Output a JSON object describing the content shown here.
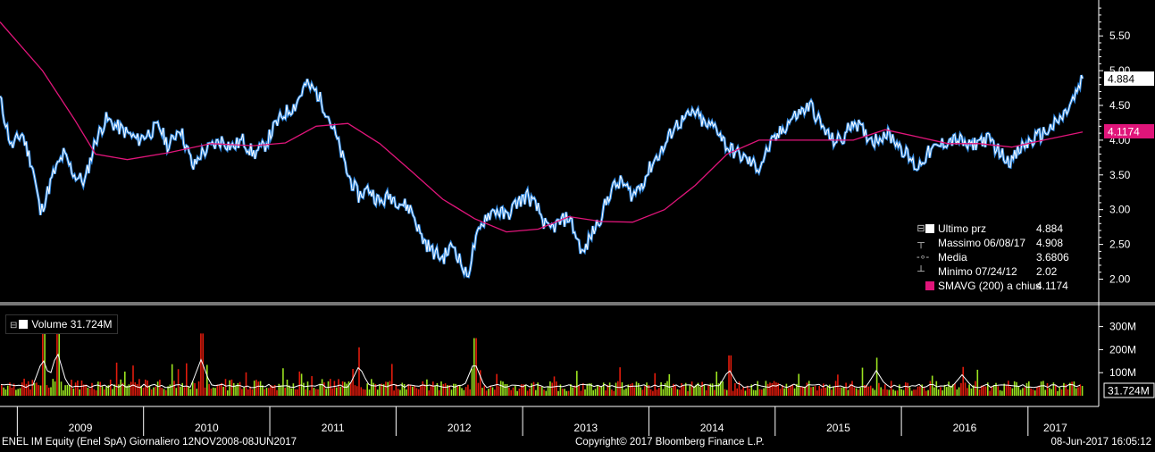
{
  "footer": {
    "security": "ENEL IM Equity (Enel SpA)  Giornaliero 12NOV2008-08JUN2017",
    "copyright": "Copyright© 2017 Bloomberg Finance L.P.",
    "timestamp": "08-Jun-2017 16:05:12"
  },
  "legend": {
    "last": {
      "name": "Ultimo prz",
      "value": "4.884"
    },
    "high": {
      "name": "Massimo 06/08/17",
      "value": "4.908"
    },
    "mean": {
      "name": "Media",
      "value": "3.6806"
    },
    "low": {
      "name": "Minimo 07/24/12",
      "value": "2.02"
    },
    "sma": {
      "name": "SMAVG (200) a chius",
      "value": "4.1174"
    }
  },
  "volume_legend": {
    "name": "Volume",
    "value": "31.724M"
  },
  "price_tags": {
    "last": "4.884",
    "sma": "4.1174"
  },
  "volume_tag": "31.724M",
  "colors": {
    "background": "#000000",
    "price_line": "#ffffff",
    "price_shadow": "#2e86de",
    "sma_line": "#e0157a",
    "volume_up": "#9be31f",
    "volume_down": "#e11b0c",
    "grid": "#555555"
  },
  "chart_data": [
    {
      "type": "line",
      "panel": "price",
      "y_ticks": [
        "2.00",
        "2.50",
        "3.00",
        "3.50",
        "4.00",
        "4.50",
        "5.00",
        "5.50"
      ],
      "ylim": [
        1.8,
        6.0
      ],
      "x_labels": [
        "2009",
        "2010",
        "2011",
        "2012",
        "2013",
        "2014",
        "2015",
        "2016",
        "2017"
      ],
      "x_range": [
        "2008-11-12",
        "2017-06-08"
      ],
      "series": [
        {
          "name": "Ultimo prz",
          "x": [
            "2008-11-12",
            "2008-12-15",
            "2009-01-15",
            "2009-02-15",
            "2009-03-09",
            "2009-04-15",
            "2009-05-15",
            "2009-06-15",
            "2009-07-15",
            "2009-08-15",
            "2009-09-15",
            "2009-10-15",
            "2009-11-15",
            "2009-12-15",
            "2010-01-15",
            "2010-02-15",
            "2010-03-15",
            "2010-04-15",
            "2010-05-25",
            "2010-06-15",
            "2010-07-15",
            "2010-08-15",
            "2010-09-15",
            "2010-10-15",
            "2010-11-15",
            "2010-12-15",
            "2011-01-15",
            "2011-02-15",
            "2011-03-15",
            "2011-04-15",
            "2011-05-15",
            "2011-06-15",
            "2011-07-15",
            "2011-08-15",
            "2011-09-15",
            "2011-10-15",
            "2011-11-15",
            "2011-12-15",
            "2012-01-15",
            "2012-02-15",
            "2012-03-15",
            "2012-04-15",
            "2012-05-15",
            "2012-06-15",
            "2012-07-24",
            "2012-08-15",
            "2012-09-15",
            "2012-10-15",
            "2012-11-15",
            "2012-12-15",
            "2013-01-15",
            "2013-02-15",
            "2013-03-15",
            "2013-04-15",
            "2013-05-15",
            "2013-06-25",
            "2013-07-15",
            "2013-08-15",
            "2013-09-15",
            "2013-10-15",
            "2013-11-15",
            "2013-12-15",
            "2014-01-15",
            "2014-02-15",
            "2014-03-15",
            "2014-04-15",
            "2014-05-15",
            "2014-06-15",
            "2014-07-15",
            "2014-08-15",
            "2014-09-15",
            "2014-10-15",
            "2014-11-15",
            "2014-12-15",
            "2015-01-15",
            "2015-02-15",
            "2015-03-15",
            "2015-04-15",
            "2015-05-15",
            "2015-06-15",
            "2015-07-15",
            "2015-08-15",
            "2015-09-15",
            "2015-10-15",
            "2015-11-15",
            "2015-12-15",
            "2016-01-15",
            "2016-02-15",
            "2016-03-15",
            "2016-04-15",
            "2016-05-15",
            "2016-06-15",
            "2016-07-15",
            "2016-08-15",
            "2016-09-15",
            "2016-10-15",
            "2016-11-15",
            "2016-12-15",
            "2017-01-15",
            "2017-02-15",
            "2017-03-15",
            "2017-04-15",
            "2017-05-15",
            "2017-06-08"
          ],
          "y": [
            4.6,
            3.9,
            4.1,
            3.6,
            2.95,
            3.5,
            3.8,
            3.5,
            3.4,
            4.0,
            4.3,
            4.2,
            4.1,
            4.0,
            4.1,
            4.2,
            3.9,
            4.2,
            3.6,
            3.8,
            3.9,
            4.0,
            3.9,
            4.0,
            3.8,
            3.9,
            4.2,
            4.4,
            4.5,
            4.8,
            4.7,
            4.4,
            4.0,
            3.5,
            3.2,
            3.3,
            3.1,
            3.2,
            3.1,
            3.0,
            2.6,
            2.4,
            2.3,
            2.5,
            2.02,
            2.5,
            2.9,
            3.0,
            2.9,
            3.1,
            3.2,
            3.0,
            2.7,
            2.8,
            2.9,
            2.35,
            2.6,
            2.9,
            3.3,
            3.4,
            3.2,
            3.4,
            3.7,
            3.9,
            4.2,
            4.3,
            4.4,
            4.2,
            4.2,
            3.9,
            3.8,
            3.7,
            3.6,
            3.9,
            4.1,
            4.3,
            4.4,
            4.5,
            4.2,
            4.0,
            4.0,
            4.3,
            4.1,
            4.0,
            4.1,
            4.0,
            3.8,
            3.6,
            3.8,
            3.9,
            4.0,
            4.0,
            3.9,
            4.0,
            4.0,
            3.8,
            3.7,
            3.9,
            4.0,
            4.1,
            4.2,
            4.35,
            4.6,
            4.884
          ]
        },
        {
          "name": "SMAVG (200) a chius",
          "x": [
            "2008-11-12",
            "2009-03-15",
            "2009-06-15",
            "2009-08-15",
            "2009-11-15",
            "2010-03-15",
            "2010-07-15",
            "2010-11-15",
            "2011-02-15",
            "2011-05-15",
            "2011-08-15",
            "2011-11-15",
            "2012-02-15",
            "2012-05-15",
            "2012-08-15",
            "2012-11-15",
            "2013-02-15",
            "2013-05-15",
            "2013-08-15",
            "2013-11-15",
            "2014-02-15",
            "2014-05-15",
            "2014-08-15",
            "2014-11-15",
            "2015-02-15",
            "2015-05-15",
            "2015-08-15",
            "2015-11-15",
            "2016-02-15",
            "2016-05-15",
            "2016-08-15",
            "2016-11-15",
            "2017-02-15",
            "2017-06-08"
          ],
          "y": [
            5.7,
            5.0,
            4.3,
            3.8,
            3.72,
            3.82,
            3.95,
            3.92,
            3.96,
            4.2,
            4.24,
            3.95,
            3.55,
            3.15,
            2.87,
            2.68,
            2.72,
            2.9,
            2.83,
            2.82,
            3.0,
            3.35,
            3.8,
            4.0,
            4.0,
            4.0,
            4.0,
            4.15,
            4.05,
            3.95,
            3.95,
            3.9,
            4.0,
            4.1174
          ]
        }
      ],
      "annotations": {
        "high": {
          "date": "06/08/17",
          "value": 4.908
        },
        "low": {
          "date": "07/24/12",
          "value": 2.02
        },
        "mean": 3.6806
      }
    },
    {
      "type": "bar",
      "panel": "volume",
      "y_ticks": [
        "100M",
        "200M",
        "300M"
      ],
      "ylim": [
        0,
        350
      ],
      "series": [
        {
          "name": "Volume",
          "last": 31.724
        }
      ],
      "spikes": [
        {
          "date": "2009-03-15",
          "value": 280
        },
        {
          "date": "2009-04-25",
          "value": 350
        },
        {
          "date": "2010-06-15",
          "value": 270
        },
        {
          "date": "2011-09-15",
          "value": 210
        },
        {
          "date": "2012-08-15",
          "value": 250
        },
        {
          "date": "2014-08-20",
          "value": 175
        },
        {
          "date": "2015-10-20",
          "value": 165
        },
        {
          "date": "2016-06-25",
          "value": 125
        }
      ]
    }
  ]
}
